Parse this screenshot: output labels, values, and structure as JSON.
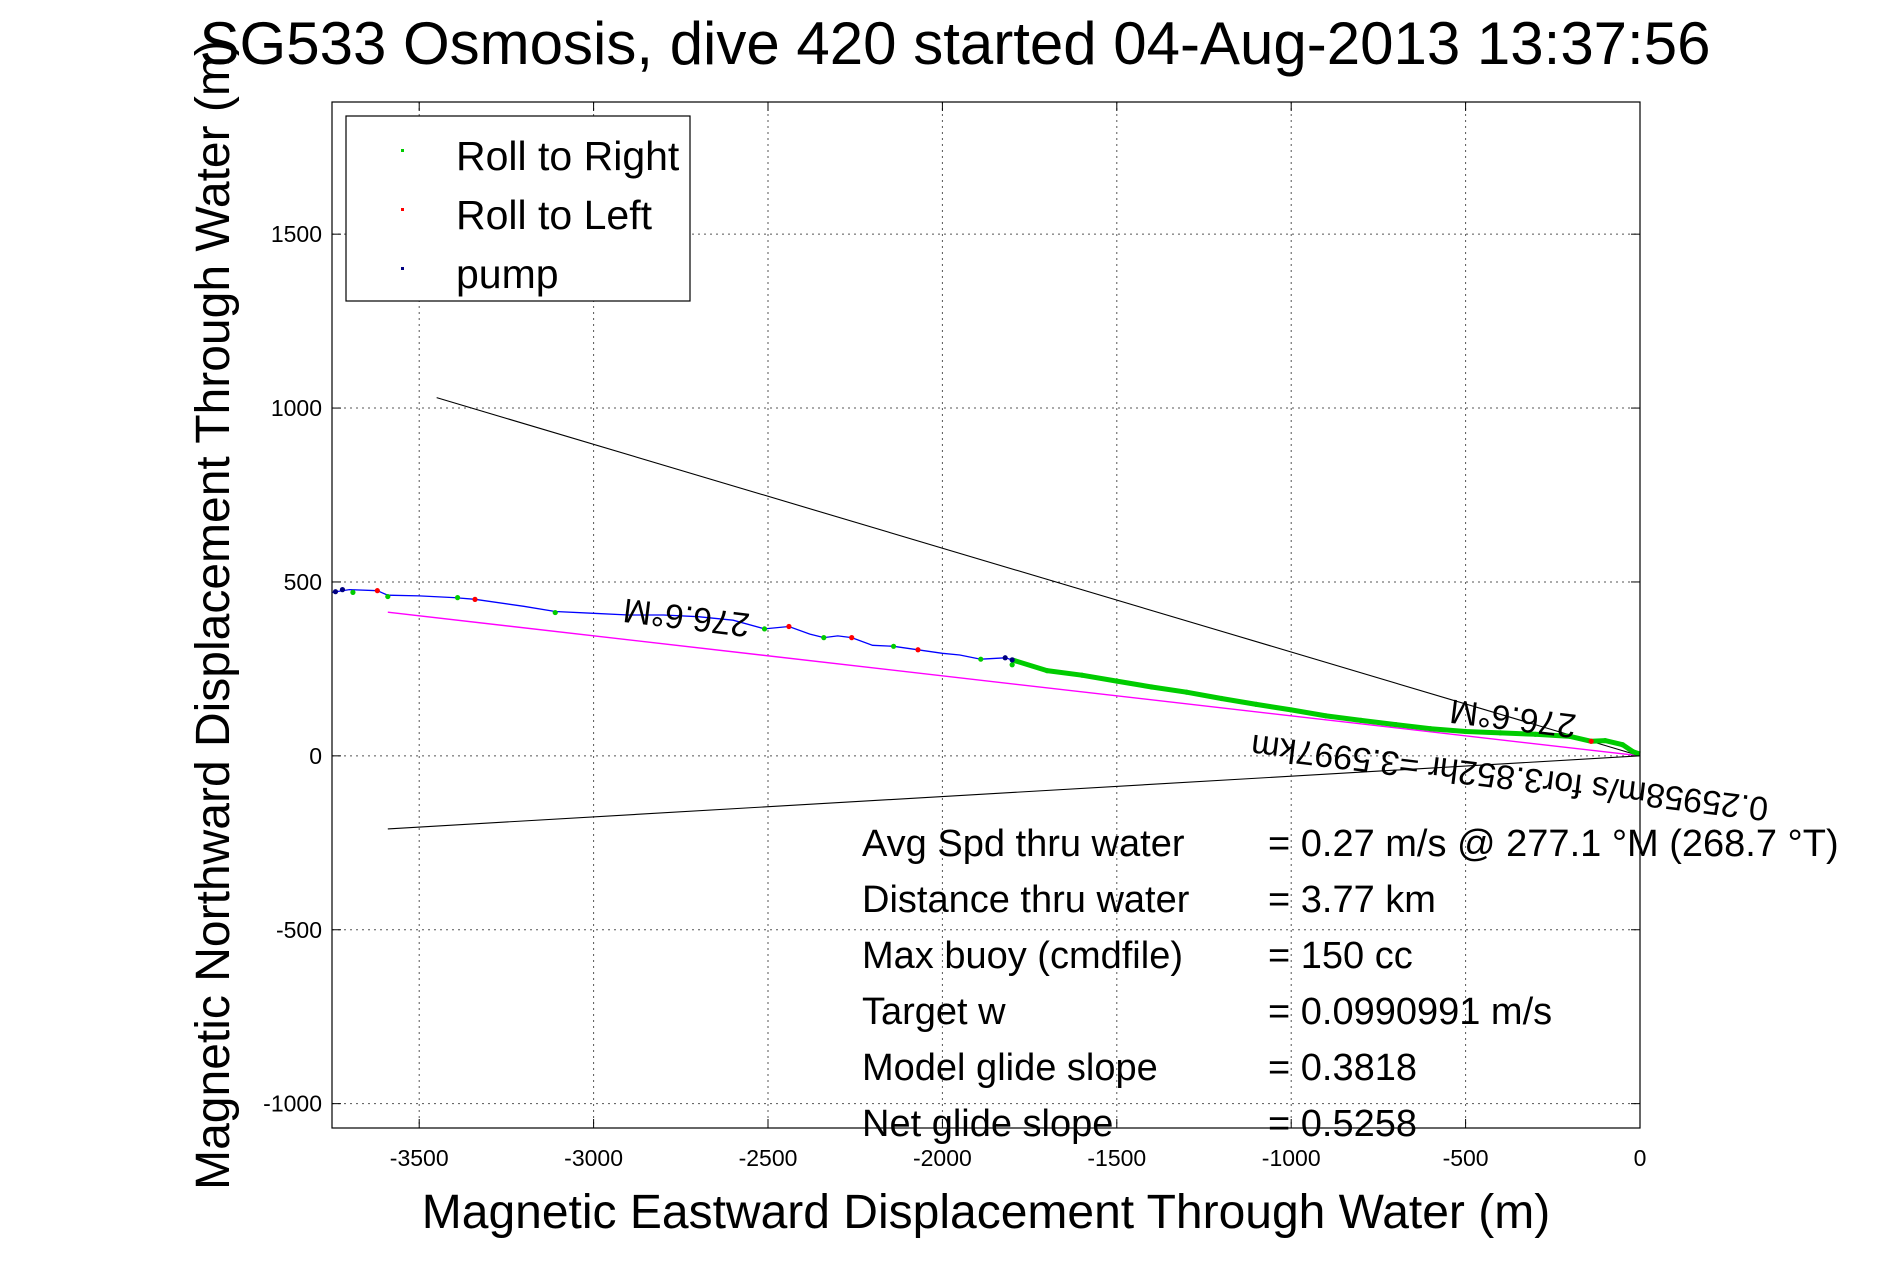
{
  "chart_data": {
    "type": "scatter",
    "title": "SG533 Osmosis, dive 420 started 04-Aug-2013 13:37:56",
    "xlabel": "Magnetic Eastward Displacement Through Water (m)",
    "ylabel": "Magnetic Northward Displacement Through Water (m)",
    "xlim": [
      -3750,
      0
    ],
    "ylim": [
      -1070,
      1880
    ],
    "xticks": [
      -3500,
      -3000,
      -2500,
      -2000,
      -1500,
      -1000,
      -500,
      0
    ],
    "yticks": [
      -1000,
      -500,
      0,
      500,
      1000,
      1500
    ],
    "grid": true,
    "legend_position": "top-left",
    "colors": {
      "roll_right": "#00cc00",
      "roll_left": "#ff0000",
      "pump": "#000080",
      "track": "#0000ff",
      "heading_line": "#ff00ff",
      "bounds": "#000000"
    },
    "series": [
      {
        "name": "Roll to Right",
        "color": "#00cc00",
        "x": [
          -3690,
          -3590,
          -3390,
          -3110,
          -2510,
          -2340,
          -2140,
          -1890,
          -1800,
          -1700,
          -1600,
          -1500,
          -1400,
          -1300,
          -1200,
          -1100,
          -1000,
          -900,
          -800,
          -700,
          -600,
          -500,
          -400,
          -300,
          -200,
          -100,
          -50,
          -20
        ],
        "y": [
          470,
          458,
          455,
          412,
          365,
          340,
          315,
          278,
          262,
          245,
          232,
          215,
          198,
          183,
          165,
          148,
          132,
          115,
          102,
          90,
          78,
          70,
          66,
          62,
          56,
          44,
          32,
          12
        ]
      },
      {
        "name": "Roll to Left",
        "color": "#ff0000",
        "x": [
          -3620,
          -3340,
          -2440,
          -2260,
          -2070,
          -140
        ],
        "y": [
          475,
          450,
          372,
          340,
          305,
          42
        ]
      },
      {
        "name": "pump",
        "color": "#000080",
        "x": [
          -3740,
          -3720,
          -1820,
          -1800
        ],
        "y": [
          472,
          478,
          282,
          276
        ]
      }
    ],
    "track": {
      "x": [
        -3750,
        -3700,
        -3620,
        -3590,
        -3500,
        -3400,
        -3340,
        -3200,
        -3110,
        -3000,
        -2900,
        -2800,
        -2700,
        -2600,
        -2510,
        -2440,
        -2380,
        -2340,
        -2300,
        -2260,
        -2200,
        -2140,
        -2070,
        -2000,
        -1950,
        -1890,
        -1820,
        -1800,
        -1700,
        -1600,
        -1500,
        -1400,
        -1300,
        -1200,
        -1100,
        -1000,
        -900,
        -800,
        -700,
        -600,
        -500,
        -400,
        -300,
        -200,
        -140,
        -100,
        -50,
        -20,
        0
      ],
      "y": [
        470,
        478,
        475,
        462,
        460,
        455,
        450,
        430,
        415,
        410,
        405,
        405,
        400,
        390,
        365,
        372,
        350,
        340,
        345,
        340,
        318,
        315,
        305,
        295,
        290,
        278,
        282,
        276,
        245,
        232,
        215,
        198,
        183,
        165,
        148,
        132,
        115,
        102,
        90,
        78,
        70,
        66,
        62,
        56,
        42,
        44,
        32,
        12,
        5
      ]
    },
    "lines": [
      {
        "name": "heading",
        "color": "#ff00ff",
        "x": [
          -3590,
          0
        ],
        "y": [
          413,
          0
        ]
      },
      {
        "name": "upper-bound",
        "color": "#000000",
        "x": [
          -3450,
          0
        ],
        "y": [
          1030,
          0
        ]
      },
      {
        "name": "lower-bound",
        "color": "#000000",
        "x": [
          -3590,
          0
        ],
        "y": [
          -210,
          0
        ]
      }
    ],
    "annotations": [
      {
        "text": "276.6°M",
        "x": -2730,
        "y": 430,
        "rotate": 187
      },
      {
        "text": "276.6°M",
        "x": -360,
        "y": 140,
        "rotate": 187
      },
      {
        "text": "0.25958m/s for3.852hr =3.5997km",
        "x": -370,
        "y": -30,
        "rotate": 187
      }
    ],
    "stats": [
      {
        "label": "Avg Spd thru water",
        "value": "=  0.27 m/s @ 277.1 °M (268.7 °T)"
      },
      {
        "label": "Distance thru water",
        "value": "=  3.77 km"
      },
      {
        "label": "Max buoy (cmdfile)",
        "value": "= 150 cc"
      },
      {
        "label": "Target w",
        "value": "= 0.0990991 m/s"
      },
      {
        "label": "Model glide slope",
        "value": "= 0.3818"
      },
      {
        "label": "Net glide slope",
        "value": "= 0.5258"
      }
    ]
  }
}
